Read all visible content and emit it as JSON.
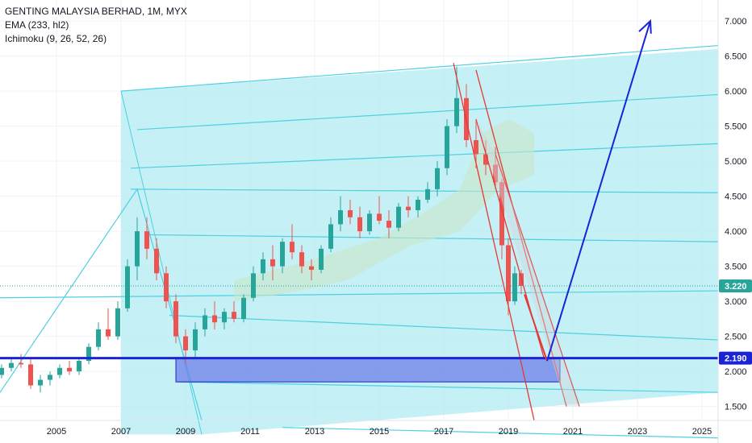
{
  "legend": {
    "title": "GENTING MALAYSIA BERHAD, 1M, MYX",
    "indicator1": "EMA (233, hl2)",
    "indicator2": "Ichimoku (9, 26, 52, 26)"
  },
  "colors": {
    "up": "#26a69a",
    "down": "#ef5350",
    "channel": "#4dd0e1",
    "channel_fill": "#b2ebf2",
    "support": "#1a23d6",
    "projection": "#1a23d6",
    "trend_red": "#e53935",
    "cloud": "#c8e6c9",
    "last_price": "#26a69a"
  },
  "chart_data": {
    "type": "candlestick",
    "symbol": "GENTING MALAYSIA BERHAD",
    "interval": "1M",
    "exchange": "MYX",
    "x_ticks": [
      "2005",
      "2007",
      "2009",
      "2011",
      "2013",
      "2015",
      "2017",
      "2019",
      "2021",
      "2023",
      "2025"
    ],
    "y_ticks": [
      "1.500",
      "2.000",
      "2.500",
      "3.000",
      "3.500",
      "4.000",
      "4.500",
      "5.000",
      "5.500",
      "6.000",
      "6.500",
      "7.000"
    ],
    "x_range": [
      2003.25,
      2025.5
    ],
    "y_range": [
      1.3,
      7.3
    ],
    "last_price": 3.22,
    "last_price_label": "3.220",
    "support_level": 2.19,
    "support_label": "2.190",
    "candles": [
      [
        2003.3,
        1.95,
        2.1,
        1.9,
        2.05
      ],
      [
        2003.6,
        2.05,
        2.2,
        2.0,
        2.12
      ],
      [
        2003.9,
        2.12,
        2.25,
        2.05,
        2.1
      ],
      [
        2004.2,
        2.1,
        2.2,
        1.75,
        1.8
      ],
      [
        2004.5,
        1.8,
        1.95,
        1.7,
        1.88
      ],
      [
        2004.8,
        1.88,
        2.0,
        1.8,
        1.95
      ],
      [
        2005.1,
        1.95,
        2.1,
        1.9,
        2.05
      ],
      [
        2005.4,
        2.05,
        2.15,
        1.95,
        2.0
      ],
      [
        2005.7,
        2.0,
        2.2,
        1.95,
        2.15
      ],
      [
        2006.0,
        2.15,
        2.4,
        2.1,
        2.35
      ],
      [
        2006.3,
        2.35,
        2.7,
        2.3,
        2.6
      ],
      [
        2006.6,
        2.6,
        2.9,
        2.45,
        2.5
      ],
      [
        2006.9,
        2.5,
        3.0,
        2.45,
        2.9
      ],
      [
        2007.2,
        2.9,
        3.6,
        2.85,
        3.5
      ],
      [
        2007.5,
        3.5,
        4.2,
        3.3,
        4.0
      ],
      [
        2007.8,
        4.0,
        4.2,
        3.6,
        3.75
      ],
      [
        2008.1,
        3.75,
        3.9,
        3.3,
        3.4
      ],
      [
        2008.4,
        3.4,
        3.5,
        2.9,
        3.0
      ],
      [
        2008.7,
        3.0,
        3.1,
        2.4,
        2.5
      ],
      [
        2009.0,
        2.5,
        2.6,
        2.1,
        2.3
      ],
      [
        2009.3,
        2.3,
        2.7,
        2.2,
        2.6
      ],
      [
        2009.6,
        2.6,
        2.9,
        2.5,
        2.8
      ],
      [
        2009.9,
        2.8,
        3.0,
        2.6,
        2.7
      ],
      [
        2010.2,
        2.7,
        2.9,
        2.6,
        2.85
      ],
      [
        2010.5,
        2.85,
        3.0,
        2.7,
        2.75
      ],
      [
        2010.8,
        2.75,
        3.1,
        2.7,
        3.05
      ],
      [
        2011.1,
        3.05,
        3.5,
        3.0,
        3.4
      ],
      [
        2011.4,
        3.4,
        3.7,
        3.3,
        3.6
      ],
      [
        2011.7,
        3.6,
        3.8,
        3.3,
        3.5
      ],
      [
        2012.0,
        3.5,
        3.9,
        3.4,
        3.85
      ],
      [
        2012.3,
        3.85,
        4.1,
        3.6,
        3.7
      ],
      [
        2012.6,
        3.7,
        3.8,
        3.4,
        3.5
      ],
      [
        2012.9,
        3.5,
        3.6,
        3.3,
        3.45
      ],
      [
        2013.2,
        3.45,
        3.8,
        3.4,
        3.75
      ],
      [
        2013.5,
        3.75,
        4.2,
        3.7,
        4.1
      ],
      [
        2013.8,
        4.1,
        4.5,
        4.0,
        4.3
      ],
      [
        2014.1,
        4.3,
        4.45,
        4.1,
        4.2
      ],
      [
        2014.4,
        4.2,
        4.35,
        3.9,
        4.0
      ],
      [
        2014.7,
        4.0,
        4.3,
        3.95,
        4.25
      ],
      [
        2015.0,
        4.25,
        4.5,
        4.1,
        4.15
      ],
      [
        2015.3,
        4.15,
        4.3,
        3.9,
        4.05
      ],
      [
        2015.6,
        4.05,
        4.4,
        4.0,
        4.35
      ],
      [
        2015.9,
        4.35,
        4.5,
        4.2,
        4.3
      ],
      [
        2016.2,
        4.3,
        4.5,
        4.2,
        4.45
      ],
      [
        2016.5,
        4.45,
        4.7,
        4.4,
        4.6
      ],
      [
        2016.8,
        4.6,
        5.0,
        4.5,
        4.9
      ],
      [
        2017.1,
        4.9,
        5.6,
        4.8,
        5.5
      ],
      [
        2017.4,
        5.5,
        6.35,
        5.4,
        5.9
      ],
      [
        2017.7,
        5.9,
        6.1,
        5.2,
        5.3
      ],
      [
        2018.0,
        5.3,
        5.6,
        4.9,
        5.1
      ],
      [
        2018.3,
        5.1,
        5.3,
        4.8,
        4.95
      ],
      [
        2018.6,
        4.95,
        5.2,
        4.6,
        4.7
      ],
      [
        2018.8,
        4.7,
        4.75,
        3.6,
        3.8
      ],
      [
        2019.0,
        3.8,
        3.9,
        2.8,
        3.0
      ],
      [
        2019.2,
        3.0,
        3.5,
        2.95,
        3.4
      ],
      [
        2019.4,
        3.4,
        3.45,
        3.1,
        3.22
      ]
    ]
  }
}
